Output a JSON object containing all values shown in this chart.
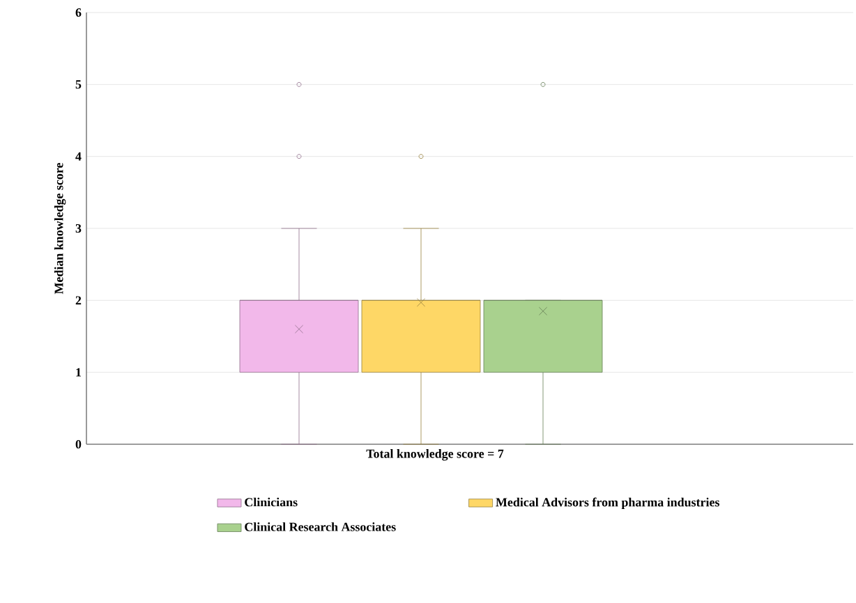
{
  "chart_data": {
    "type": "box",
    "ylabel": "Median knowledge score",
    "categories": [
      "Total knowledge score = 7"
    ],
    "series": [
      {
        "name": "Clinicians",
        "color": "#f2b8ea",
        "boxes": [
          {
            "low": 0,
            "q1": 1,
            "median": 2,
            "q3": 2,
            "high": 3,
            "mean": 1.6,
            "outliers": [
              4,
              5
            ]
          }
        ]
      },
      {
        "name": "Medical Advisors from pharma industries",
        "color": "#fed766",
        "boxes": [
          {
            "low": 0,
            "q1": 1,
            "median": 2,
            "q3": 2,
            "high": 3,
            "mean": 1.97,
            "outliers": [
              4
            ]
          }
        ]
      },
      {
        "name": "Clinical Research Associates",
        "color": "#a9d18e",
        "boxes": [
          {
            "low": 0,
            "q1": 1,
            "median": 2,
            "q3": 2,
            "high": 2,
            "mean": 1.85,
            "outliers": [
              5
            ]
          }
        ]
      }
    ],
    "ylim": [
      0,
      6
    ],
    "yticks": [
      0,
      1,
      2,
      3,
      4,
      5,
      6
    ],
    "grid": "y",
    "legend": "bottom"
  }
}
